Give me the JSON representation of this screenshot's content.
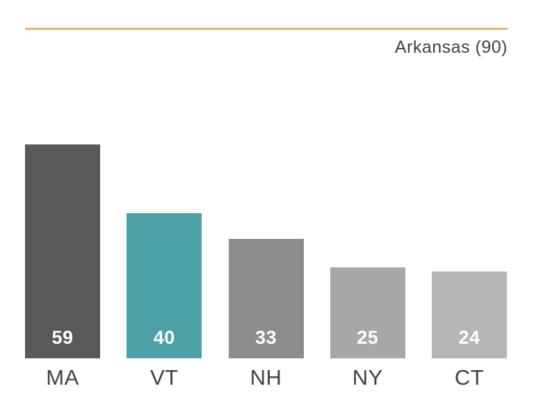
{
  "chart_data": {
    "type": "bar",
    "categories": [
      "MA",
      "VT",
      "NH",
      "NY",
      "CT"
    ],
    "values": [
      59,
      40,
      33,
      25,
      24
    ],
    "title": "",
    "xlabel": "",
    "ylabel": "",
    "ylim": [
      0,
      90
    ],
    "grid": false,
    "legend": false,
    "reference": {
      "label": "Arkansas (90)",
      "value": 90
    },
    "colors": {
      "bars": [
        "#58595b",
        "#4ca1a7",
        "#8b8d8f",
        "#a5a7a9",
        "#b3b5b7"
      ],
      "reference_line": "#e9b563",
      "value_label": "#ffffff",
      "axis_label": "#414042"
    }
  }
}
